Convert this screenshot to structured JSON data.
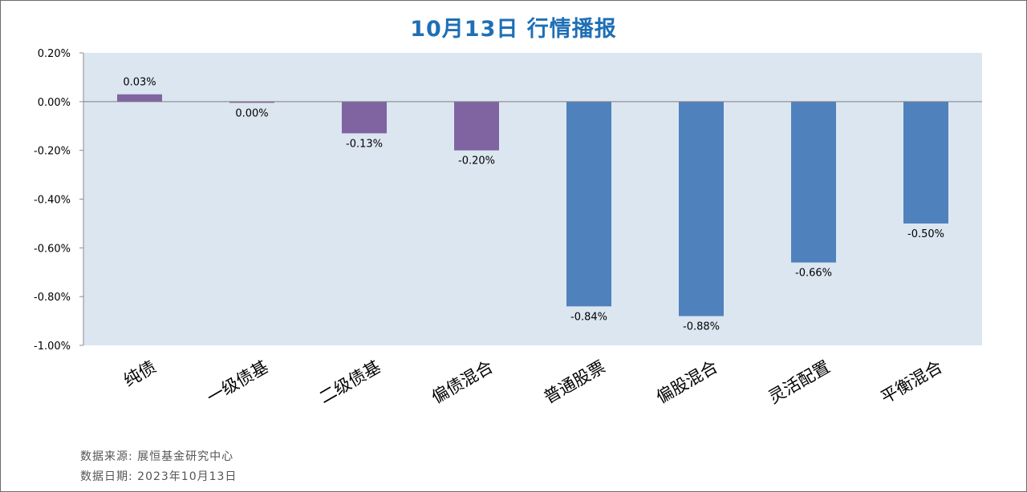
{
  "chart_data": {
    "type": "bar",
    "title": "10月13日  行情播报",
    "categories": [
      "纯债",
      "一级债基",
      "二级债基",
      "偏债混合",
      "普通股票",
      "偏股混合",
      "灵活配置",
      "平衡混合"
    ],
    "values": [
      0.03,
      0.0,
      -0.13,
      -0.2,
      -0.84,
      -0.88,
      -0.66,
      -0.5
    ],
    "value_labels": [
      "0.03%",
      "0.00%",
      "-0.13%",
      "-0.20%",
      "-0.84%",
      "-0.88%",
      "-0.66%",
      "-0.50%"
    ],
    "ylim": [
      -1.0,
      0.2
    ],
    "yticks": [
      0.2,
      0.0,
      -0.2,
      -0.4,
      -0.6,
      -0.8,
      -1.0
    ],
    "ytick_labels": [
      "0.20%",
      "0.00%",
      "-0.20%",
      "-0.40%",
      "-0.60%",
      "-0.80%",
      "-1.00%"
    ],
    "bar_colors": [
      "#8064a2",
      "#8064a2",
      "#8064a2",
      "#8064a2",
      "#4f81bd",
      "#4f81bd",
      "#4f81bd",
      "#4f81bd"
    ],
    "plot_background": "#dce6f1",
    "grid": false,
    "legend": "none"
  },
  "footer": {
    "source": "数据来源: 展恒基金研究中心",
    "date": "数据日期: 2023年10月13日"
  }
}
